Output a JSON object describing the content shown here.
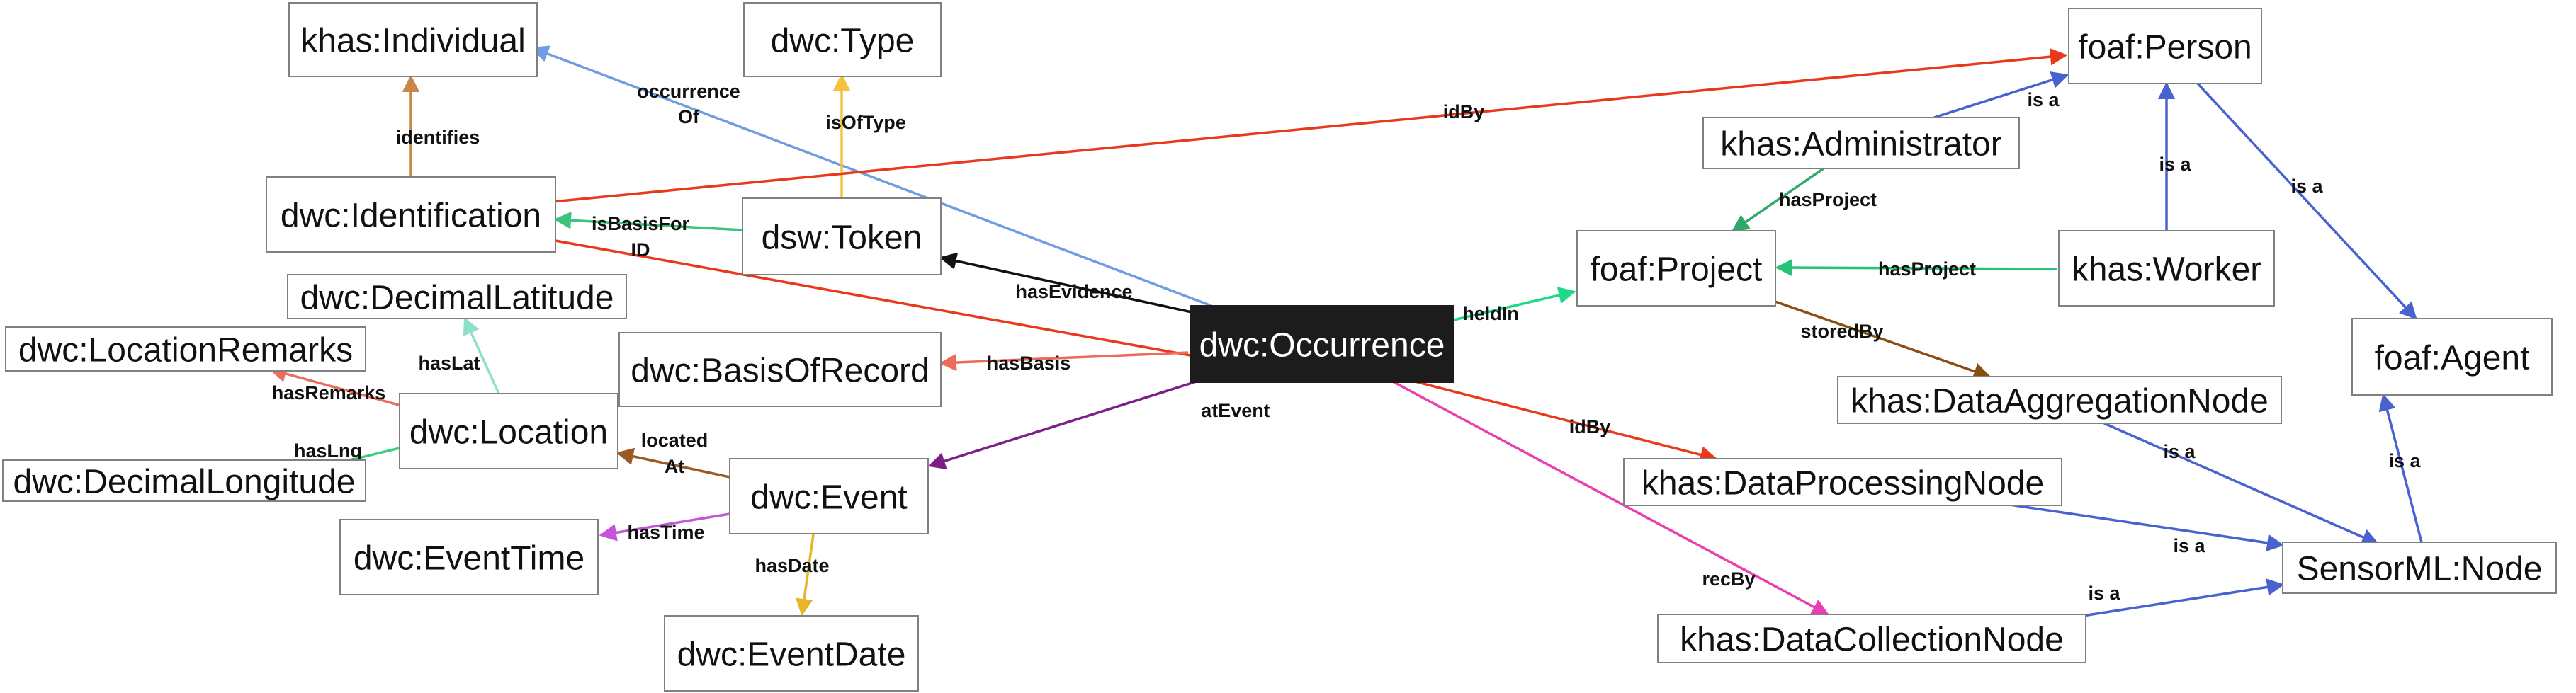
{
  "nodes": {
    "individual": "khas:Individual",
    "type": "dwc:Type",
    "person": "foaf:Person",
    "identification": "dwc:Identification",
    "token": "dsw:Token",
    "administrator": "khas:Administrator",
    "project": "foaf:Project",
    "worker": "khas:Worker",
    "decimal_latitude": "dwc:DecimalLatitude",
    "location_remarks": "dwc:LocationRemarks",
    "basis_of_record": "dwc:BasisOfRecord",
    "occurrence": "dwc:Occurrence",
    "agent": "foaf:Agent",
    "data_aggregation_node": "khas:DataAggregationNode",
    "location": "dwc:Location",
    "decimal_longitude": "dwc:DecimalLongitude",
    "event": "dwc:Event",
    "data_processing_node": "khas:DataProcessingNode",
    "event_time": "dwc:EventTime",
    "sensorml_node": "SensorML:Node",
    "data_collection_node": "khas:DataCollectionNode",
    "event_date": "dwc:EventDate"
  },
  "edges": {
    "occurrence_of_1": "occurrence",
    "occurrence_of_2": "Of",
    "is_of_type": "isOfType",
    "id_by_person": "idBy",
    "identifies": "identifies",
    "is_basis_for_1": "isBasisFor",
    "is_basis_for_2": "ID",
    "has_evidence": "hasEvidence",
    "held_in": "heldIn",
    "has_basis": "hasBasis",
    "at_event": "atEvent",
    "has_lat": "hasLat",
    "has_remarks": "hasRemarks",
    "has_lng": "hasLng",
    "located_at_1": "located",
    "located_at_2": "At",
    "has_time": "hasTime",
    "has_date": "hasDate",
    "id_by_processing": "idBy",
    "rec_by": "recBy",
    "admin_is_a": "is a",
    "admin_has_project": "hasProject",
    "worker_has_project": "hasProject",
    "worker_is_a": "is a",
    "person_is_a": "is a",
    "stored_by": "storedBy",
    "aggregation_is_a": "is a",
    "processing_is_a": "is a",
    "collection_is_a": "is a",
    "sensorml_is_a": "is a"
  },
  "colors": {
    "red": "#e8391c",
    "blue_gray": "#6e9de3",
    "yellow": "#f5c242",
    "tan": "#c8874a",
    "green": "#3cc47c",
    "black": "#111111",
    "mint": "#1fd98a",
    "salmon": "#ee6a5a",
    "purple": "#7e1f86",
    "light_teal": "#8fe0c8",
    "light_green": "#3ad07a",
    "brown": "#9a5a24",
    "violet": "#c455d9",
    "gold": "#e7b52a",
    "magenta": "#e840b0",
    "royal_blue": "#4a62d0",
    "dark_green": "#2fa86c",
    "teal_green": "#28c277",
    "brown_dark": "#8a4f10"
  }
}
